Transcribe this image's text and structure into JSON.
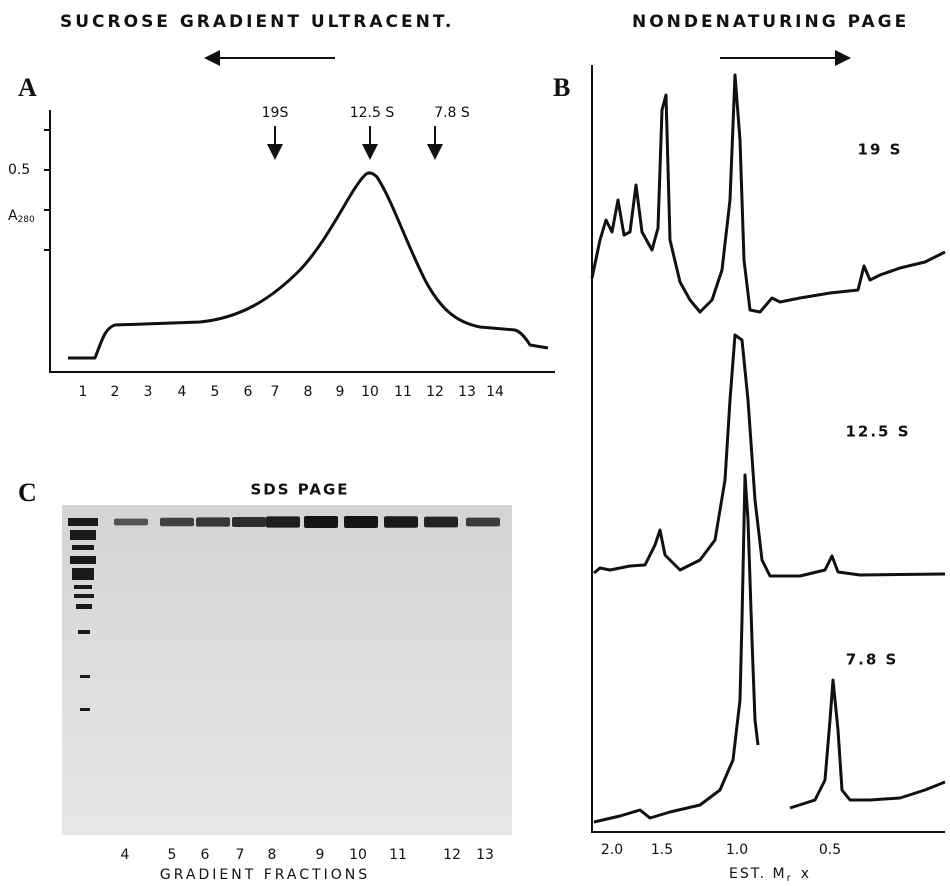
{
  "header": {
    "left": "SUCROSE GRADIENT ULTRACENT.",
    "right": "NONDENATURING PAGE"
  },
  "panel_a": {
    "label": "A",
    "markers": [
      "19S",
      "12.5 S",
      "7.8 S"
    ],
    "y_tick": "0.5",
    "y_label": "A",
    "y_label_sub": "280",
    "x_ticks": [
      "1",
      "2",
      "3",
      "4",
      "5",
      "6",
      "7",
      "8",
      "9",
      "10",
      "11",
      "12",
      "13",
      "14"
    ]
  },
  "panel_b": {
    "label": "B",
    "traces": [
      "19 S",
      "12.5 S",
      "7.8 S"
    ],
    "x_ticks": [
      "2.0",
      "1.5",
      "1.0",
      "0.5"
    ],
    "x_label": "EST. M",
    "x_label_sub": "r",
    "x_label_suffix": "x"
  },
  "panel_c": {
    "label": "C",
    "title": "SDS PAGE",
    "lanes": [
      "4",
      "5",
      "6",
      "7",
      "8",
      "9",
      "10",
      "11",
      "12",
      "13"
    ],
    "x_label": "GRADIENT FRACTIONS"
  }
}
